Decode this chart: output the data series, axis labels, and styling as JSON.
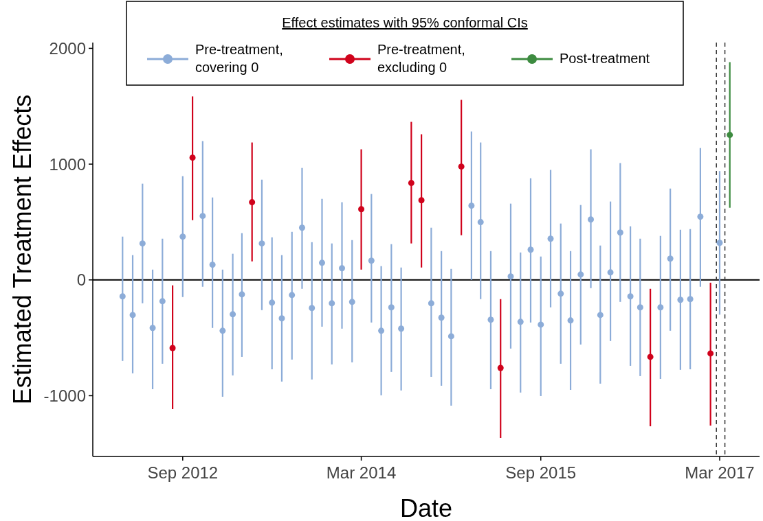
{
  "chart_data": {
    "type": "scatter",
    "xlabel": "Date",
    "ylabel": "Estimated Treatment Effects",
    "legend_title": "Effect estimates with 95% conformal CIs",
    "legend": "top",
    "grid": false,
    "marker": "circle",
    "xlim": [
      "2011-12-01",
      "2017-07-01"
    ],
    "ylim": [
      -1525,
      2050
    ],
    "xticks": [
      {
        "value": "2012-09-01",
        "label": "Sep 2012"
      },
      {
        "value": "2014-03-01",
        "label": "Mar 2014"
      },
      {
        "value": "2015-09-01",
        "label": "Sep 2015"
      },
      {
        "value": "2017-03-01",
        "label": "Mar 2017"
      }
    ],
    "yticks": [
      -1000,
      0,
      1000,
      2000
    ],
    "ref_lines": [
      {
        "axis": "y",
        "value": 0,
        "color": "#000000",
        "line_style": "solid"
      },
      {
        "axis": "x",
        "value": "2017-02-19",
        "color": "#333333",
        "line_style": "dashed"
      },
      {
        "axis": "x",
        "value": "2017-03-17",
        "color": "#333333",
        "line_style": "dashed"
      }
    ],
    "series": [
      {
        "name": "Pre-treatment,\ncovering 0",
        "color": "#8cacd8",
        "x": [
          "2012-03",
          "2012-04",
          "2012-05",
          "2012-06",
          "2012-07",
          "2012-09",
          "2012-11",
          "2012-12",
          "2013-01",
          "2013-02",
          "2013-03",
          "2013-05",
          "2013-06",
          "2013-07",
          "2013-08",
          "2013-09",
          "2013-10",
          "2013-11",
          "2013-12",
          "2014-01",
          "2014-02",
          "2014-04",
          "2014-05",
          "2014-06",
          "2014-07",
          "2014-10",
          "2014-11",
          "2014-12",
          "2015-02",
          "2015-03",
          "2015-04",
          "2015-06",
          "2015-07",
          "2015-08",
          "2015-09",
          "2015-10",
          "2015-11",
          "2015-12",
          "2016-01",
          "2016-02",
          "2016-03",
          "2016-04",
          "2016-05",
          "2016-06",
          "2016-07",
          "2016-09",
          "2016-10",
          "2016-11",
          "2016-12",
          "2017-01",
          "2017-03"
        ],
        "values": [
          -142,
          -303,
          315,
          -415,
          -184,
          374,
          552,
          131,
          -439,
          -297,
          -125,
          315,
          -196,
          -332,
          -131,
          451,
          -243,
          148,
          -202,
          101,
          -190,
          166,
          -439,
          -237,
          -421,
          -202,
          -326,
          -487,
          641,
          499,
          -344,
          30,
          -362,
          261,
          -386,
          356,
          -119,
          -350,
          47,
          522,
          -303,
          65,
          409,
          -142,
          -237,
          -237,
          184,
          -172,
          -166,
          546,
          320
        ],
        "errors": [
          [
            -700,
            374
          ],
          [
            -807,
            214
          ],
          [
            -202,
            831
          ],
          [
            -944,
            89
          ],
          [
            -724,
            356
          ],
          [
            -148,
            896
          ],
          [
            -59,
            1199
          ],
          [
            -415,
            712
          ],
          [
            -1009,
            89
          ],
          [
            -825,
            226
          ],
          [
            -665,
            404
          ],
          [
            -261,
            866
          ],
          [
            -772,
            368
          ],
          [
            -878,
            214
          ],
          [
            -688,
            415
          ],
          [
            -77,
            967
          ],
          [
            -860,
            326
          ],
          [
            -404,
            700
          ],
          [
            -730,
            315
          ],
          [
            -421,
            671
          ],
          [
            -712,
            344
          ],
          [
            -368,
            742
          ],
          [
            -997,
            119
          ],
          [
            -795,
            309
          ],
          [
            -955,
            107
          ],
          [
            -837,
            451
          ],
          [
            -914,
            249
          ],
          [
            -1086,
            95
          ],
          [
            0,
            1282
          ],
          [
            -166,
            1187
          ],
          [
            -944,
            249
          ],
          [
            -593,
            659
          ],
          [
            -973,
            237
          ],
          [
            -368,
            878
          ],
          [
            -1003,
            202
          ],
          [
            -237,
            950
          ],
          [
            -724,
            487
          ],
          [
            -950,
            249
          ],
          [
            -558,
            647
          ],
          [
            -71,
            1128
          ],
          [
            -896,
            297
          ],
          [
            -528,
            677
          ],
          [
            -190,
            1009
          ],
          [
            -742,
            463
          ],
          [
            -831,
            356
          ],
          [
            -855,
            380
          ],
          [
            -439,
            789
          ],
          [
            -777,
            433
          ],
          [
            -772,
            439
          ],
          [
            -59,
            1139
          ],
          [
            -300,
            940
          ]
        ]
      },
      {
        "name": "Pre-treatment,\nexcluding 0",
        "color": "#d0021b",
        "x": [
          "2012-08",
          "2012-10",
          "2013-04",
          "2014-03",
          "2014-08",
          "2014-09",
          "2015-01",
          "2015-05",
          "2016-08",
          "2017-02"
        ],
        "values": [
          -588,
          1056,
          671,
          611,
          837,
          688,
          979,
          -760,
          -665,
          -635
        ],
        "errors": [
          [
            -1116,
            -47
          ],
          [
            516,
            1585
          ],
          [
            160,
            1187
          ],
          [
            89,
            1128
          ],
          [
            315,
            1365
          ],
          [
            107,
            1258
          ],
          [
            386,
            1555
          ],
          [
            -1365,
            -166
          ],
          [
            -1264,
            -77
          ],
          [
            -1258,
            -24
          ]
        ]
      },
      {
        "name": "Post-treatment",
        "color": "#3d8b40",
        "x": [
          "2017-04"
        ],
        "values": [
          1252
        ],
        "errors": [
          [
            623,
            1881
          ]
        ]
      }
    ]
  }
}
